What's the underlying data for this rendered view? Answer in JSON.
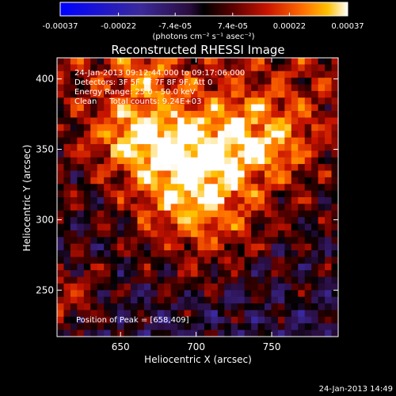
{
  "colorbar": {
    "tick_labels": [
      "-0.00037",
      "-0.00022",
      "-7.4e-05",
      "7.4e-05",
      "0.00022",
      "0.00037"
    ],
    "tick_values": [
      -0.00037,
      -0.00022,
      -7.4e-05,
      7.4e-05,
      0.00022,
      0.00037
    ],
    "unit_label": "(photons cm⁻² s⁻¹ asec⁻²)",
    "range": [
      -0.00037,
      0.00037
    ]
  },
  "chart_data": {
    "type": "heatmap",
    "title": "Reconstructed RHESSI Image",
    "xlabel": "Heliocentric X (arcsec)",
    "ylabel": "Heliocentric Y (arcsec)",
    "xlim": [
      608,
      794
    ],
    "ylim": [
      217,
      415
    ],
    "x_ticks": [
      650,
      700,
      750
    ],
    "y_ticks": [
      250,
      300,
      350,
      400
    ],
    "x_tick_labels": [
      "650",
      "700",
      "750"
    ],
    "y_tick_labels": [
      "250",
      "300",
      "350",
      "400"
    ],
    "peak": [
      658,
      409
    ],
    "annotations": {
      "time_range": "24-Jan-2013 09:12:44.000 to 09:17:06.000",
      "detectors": "Detectors: 3F 5F 6F 7F 8F 9F, Att 0",
      "energy": "Energy Range: 25.0 - 50.0 keV",
      "clean": "Clean     Total counts: 9.24E+03",
      "peak_text": "Position of Peak = [658,409]"
    },
    "sources": [
      {
        "x": 702,
        "y": 340,
        "sigma": 30,
        "amp": 0.92
      },
      {
        "x": 660,
        "y": 360,
        "sigma": 18,
        "amp": 0.55
      },
      {
        "x": 750,
        "y": 360,
        "sigma": 22,
        "amp": 0.45
      },
      {
        "x": 665,
        "y": 405,
        "sigma": 14,
        "amp": 0.35
      },
      {
        "x": 615,
        "y": 245,
        "sigma": 14,
        "amp": 0.5
      },
      {
        "x": 700,
        "y": 290,
        "sigma": 25,
        "amp": 0.3
      }
    ],
    "grid": false
  },
  "footer": {
    "timestamp": "24-Jan-2013 14:49"
  }
}
